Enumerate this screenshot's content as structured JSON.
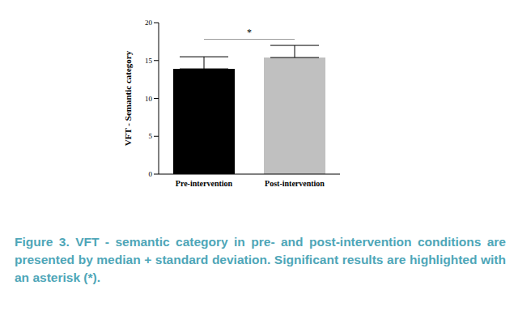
{
  "chart_data": {
    "type": "bar",
    "categories": [
      "Pre-intervention",
      "Post-intervention"
    ],
    "values": [
      13.9,
      15.4
    ],
    "errors": [
      1.6,
      1.6
    ],
    "colors": [
      "#000000",
      "#c0c0c0"
    ],
    "ylabel": "VFT - Semantic category",
    "ylim": [
      0,
      20
    ],
    "yticks": [
      0,
      5,
      10,
      15,
      20
    ],
    "grid": false,
    "annotations": [
      {
        "text": "*",
        "x1": "Pre-intervention",
        "x2": "Post-intervention",
        "y": 17.8
      }
    ],
    "caption": "Figure 3. VFT - semantic category in pre- and post-intervention conditions are presented by median + standard deviation. Significant results are highlighted with an asterisk (*)."
  }
}
